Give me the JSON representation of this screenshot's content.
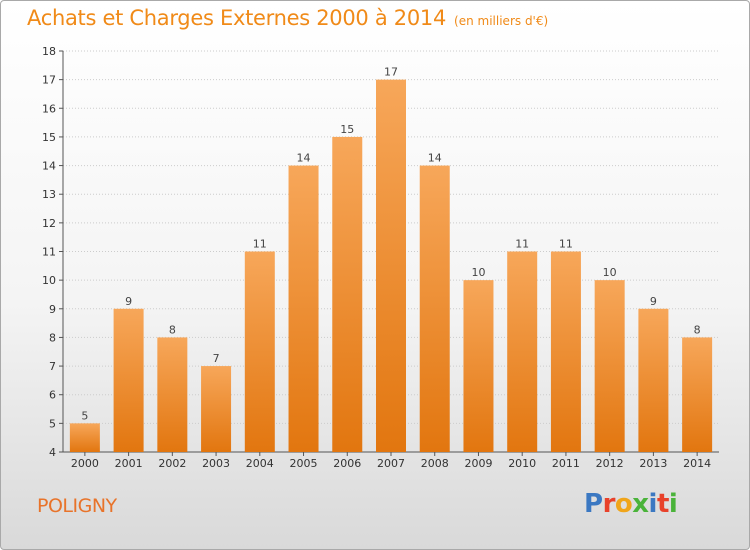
{
  "header": {
    "title": "Achats et Charges Externes 2000 à 2014",
    "subtitle": "(en milliers d'€)"
  },
  "footer": {
    "place": "POLIGNY",
    "brand": "Proxiti"
  },
  "colors": {
    "accent": "#f08a18",
    "bar_top": "#f7a75a",
    "bar_bottom": "#e2760f",
    "grid": "#cccccc",
    "brand_letters": [
      "#3b78c2",
      "#e8412a",
      "#f0a51a",
      "#4ab33a",
      "#3b78c2",
      "#e8412a",
      "#4ab33a"
    ]
  },
  "chart_data": {
    "type": "bar",
    "title": "Achats et Charges Externes 2000 à 2014",
    "subtitle": "(en milliers d'€)",
    "xlabel": "",
    "ylabel": "",
    "categories": [
      "2000",
      "2001",
      "2002",
      "2003",
      "2004",
      "2005",
      "2006",
      "2007",
      "2008",
      "2009",
      "2010",
      "2011",
      "2012",
      "2013",
      "2014"
    ],
    "values": [
      5,
      9,
      8,
      7,
      11,
      14,
      15,
      17,
      14,
      10,
      11,
      11,
      10,
      9,
      8
    ],
    "ylim": [
      4,
      18
    ],
    "yticks": [
      4,
      5,
      6,
      7,
      8,
      9,
      10,
      11,
      12,
      13,
      14,
      15,
      16,
      17,
      18
    ],
    "grid": true,
    "data_labels": true
  }
}
